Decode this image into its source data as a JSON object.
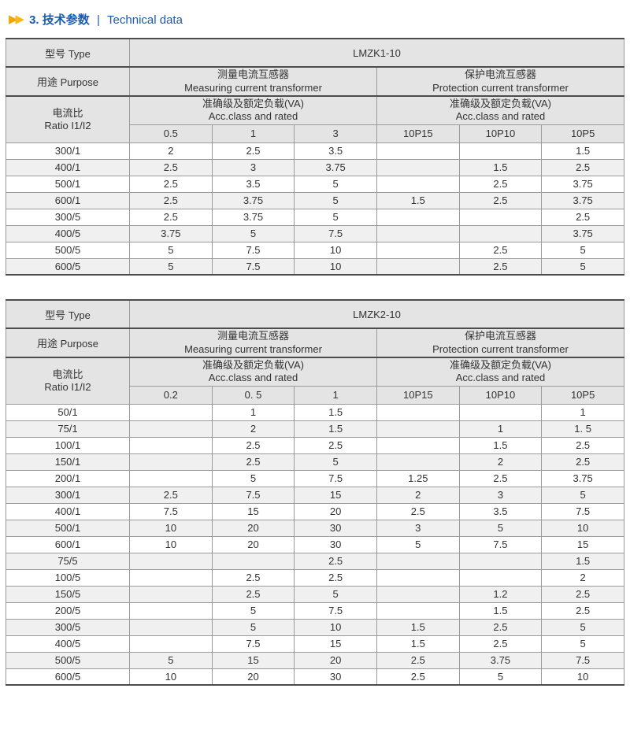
{
  "page_title": {
    "number": "3.",
    "zh": "技术参数",
    "divider": "|",
    "en": "Technical data"
  },
  "colors": {
    "title_blue": "#1b5bab",
    "arrow_gold": "#f6a400",
    "header_gray": "#e4e4e4",
    "band_gray": "#f0f0f0"
  },
  "icons": {
    "section_marker": "double-right-arrow"
  },
  "tables": [
    {
      "type_label": "型号 Type",
      "model": "LMZK1-10",
      "purpose_label": "用途 Purpose",
      "measuring": {
        "zh": "测量电流互感器",
        "en": "Measuring current transformer"
      },
      "protection": {
        "zh": "保护电流互感器",
        "en": "Protection current transformer"
      },
      "ratio_label": {
        "zh": "电流比",
        "en": "Ratio I1/I2"
      },
      "acc": {
        "zh": "准确级及额定负载(VA)",
        "en": "Acc.class and rated"
      },
      "class_columns": [
        "0.5",
        "1",
        "3",
        "10P15",
        "10P10",
        "10P5"
      ],
      "rows": [
        {
          "ratio": "300/1",
          "values": [
            "2",
            "2.5",
            "3.5",
            "",
            "",
            "1.5"
          ]
        },
        {
          "ratio": "400/1",
          "values": [
            "2.5",
            "3",
            "3.75",
            "",
            "1.5",
            "2.5"
          ]
        },
        {
          "ratio": "500/1",
          "values": [
            "2.5",
            "3.5",
            "5",
            "",
            "2.5",
            "3.75"
          ]
        },
        {
          "ratio": "600/1",
          "values": [
            "2.5",
            "3.75",
            "5",
            "1.5",
            "2.5",
            "3.75"
          ]
        },
        {
          "ratio": "300/5",
          "values": [
            "2.5",
            "3.75",
            "5",
            "",
            "",
            "2.5"
          ]
        },
        {
          "ratio": "400/5",
          "values": [
            "3.75",
            "5",
            "7.5",
            "",
            "",
            "3.75"
          ]
        },
        {
          "ratio": "500/5",
          "values": [
            "5",
            "7.5",
            "10",
            "",
            "2.5",
            "5"
          ]
        },
        {
          "ratio": "600/5",
          "values": [
            "5",
            "7.5",
            "10",
            "",
            "2.5",
            "5"
          ]
        }
      ]
    },
    {
      "type_label": "型号 Type",
      "model": "LMZK2-10",
      "purpose_label": "用途 Purpose",
      "measuring": {
        "zh": "测量电流互感器",
        "en": "Measuring current transformer"
      },
      "protection": {
        "zh": "保护电流互感器",
        "en": "Protection current transformer"
      },
      "ratio_label": {
        "zh": "电流比",
        "en": "Ratio I1/I2"
      },
      "acc": {
        "zh": "准确级及额定负载(VA)",
        "en": "Acc.class and rated"
      },
      "class_columns": [
        "0.2",
        "0. 5",
        "1",
        "10P15",
        "10P10",
        "10P5"
      ],
      "rows": [
        {
          "ratio": "50/1",
          "values": [
            "",
            "1",
            "1.5",
            "",
            "",
            "1"
          ]
        },
        {
          "ratio": "75/1",
          "values": [
            "",
            "2",
            "1.5",
            "",
            "1",
            "1. 5"
          ]
        },
        {
          "ratio": "100/1",
          "values": [
            "",
            "2.5",
            "2.5",
            "",
            "1.5",
            "2.5"
          ]
        },
        {
          "ratio": "150/1",
          "values": [
            "",
            "2.5",
            "5",
            "",
            "2",
            "2.5"
          ]
        },
        {
          "ratio": "200/1",
          "values": [
            "",
            "5",
            "7.5",
            "1.25",
            "2.5",
            "3.75"
          ]
        },
        {
          "ratio": "300/1",
          "values": [
            "2.5",
            "7.5",
            "15",
            "2",
            "3",
            "5"
          ]
        },
        {
          "ratio": "400/1",
          "values": [
            "7.5",
            "15",
            "20",
            "2.5",
            "3.5",
            "7.5"
          ]
        },
        {
          "ratio": "500/1",
          "values": [
            "10",
            "20",
            "30",
            "3",
            "5",
            "10"
          ]
        },
        {
          "ratio": "600/1",
          "values": [
            "10",
            "20",
            "30",
            "5",
            "7.5",
            "15"
          ]
        },
        {
          "ratio": "75/5",
          "values": [
            "",
            "",
            "2.5",
            "",
            "",
            "1.5"
          ]
        },
        {
          "ratio": "100/5",
          "values": [
            "",
            "2.5",
            "2.5",
            "",
            "",
            "2"
          ]
        },
        {
          "ratio": "150/5",
          "values": [
            "",
            "2.5",
            "5",
            "",
            "1.2",
            "2.5"
          ]
        },
        {
          "ratio": "200/5",
          "values": [
            "",
            "5",
            "7.5",
            "",
            "1.5",
            "2.5"
          ]
        },
        {
          "ratio": "300/5",
          "values": [
            "",
            "5",
            "10",
            "1.5",
            "2.5",
            "5"
          ]
        },
        {
          "ratio": "400/5",
          "values": [
            "",
            "7.5",
            "15",
            "1.5",
            "2.5",
            "5"
          ]
        },
        {
          "ratio": "500/5",
          "values": [
            "5",
            "15",
            "20",
            "2.5",
            "3.75",
            "7.5"
          ]
        },
        {
          "ratio": "600/5",
          "values": [
            "10",
            "20",
            "30",
            "2.5",
            "5",
            "10"
          ]
        }
      ]
    }
  ]
}
